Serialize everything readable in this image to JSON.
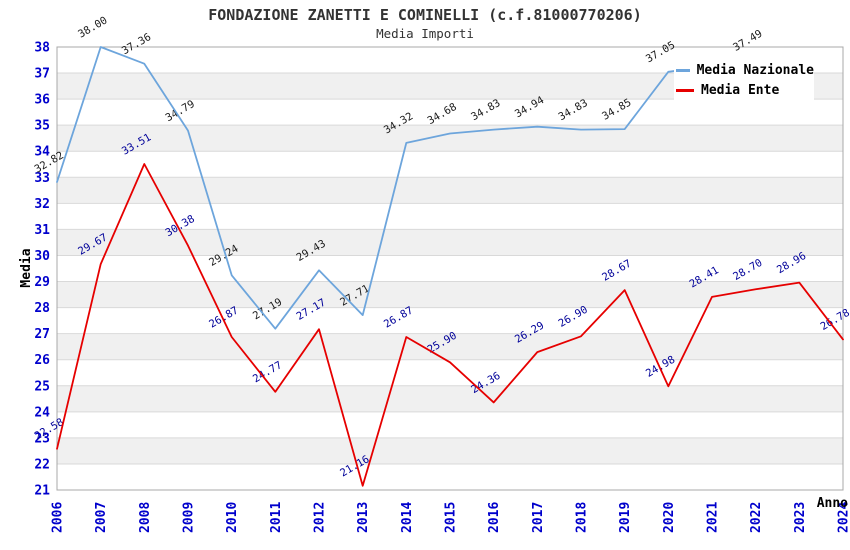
{
  "chart_data": {
    "type": "line",
    "title": "FONDAZIONE ZANETTI E COMINELLI (c.f.81000770206)",
    "subtitle": "Media Importi",
    "xlabel": "Anno",
    "ylabel": "Media",
    "ylim": [
      21,
      38
    ],
    "ytick_step": 1,
    "grid": "horizontal gridlines with alternating gray bands",
    "legend_position": "top-right",
    "x": [
      2006,
      2007,
      2008,
      2009,
      2010,
      2011,
      2012,
      2013,
      2014,
      2015,
      2016,
      2017,
      2018,
      2019,
      2020,
      2021,
      2022,
      2023,
      2024
    ],
    "series": [
      {
        "name": "Media Nazionale",
        "color": "#6da5dc",
        "label_color": "#1a1a1a",
        "values": [
          32.82,
          38.0,
          37.36,
          34.79,
          29.24,
          27.19,
          29.43,
          27.71,
          34.32,
          34.68,
          34.83,
          34.94,
          34.83,
          34.85,
          37.05,
          null,
          37.49,
          null,
          null
        ]
      },
      {
        "name": "Media Ente",
        "color": "#e60000",
        "label_color": "#000099",
        "values": [
          22.58,
          29.67,
          33.51,
          30.38,
          26.87,
          24.77,
          27.17,
          21.16,
          26.87,
          25.9,
          24.36,
          26.29,
          26.9,
          28.67,
          24.98,
          28.41,
          28.7,
          28.96,
          26.78
        ]
      }
    ],
    "colors": {
      "axis_tick_text": "#0000cc",
      "axis_title_text": "#000000",
      "chart_title_text": "#333333",
      "band_fill": "#f0f0f0",
      "gridline": "#d9d9d9",
      "plot_border": "#a8a8a8",
      "legend_background": "#ffffff"
    }
  }
}
